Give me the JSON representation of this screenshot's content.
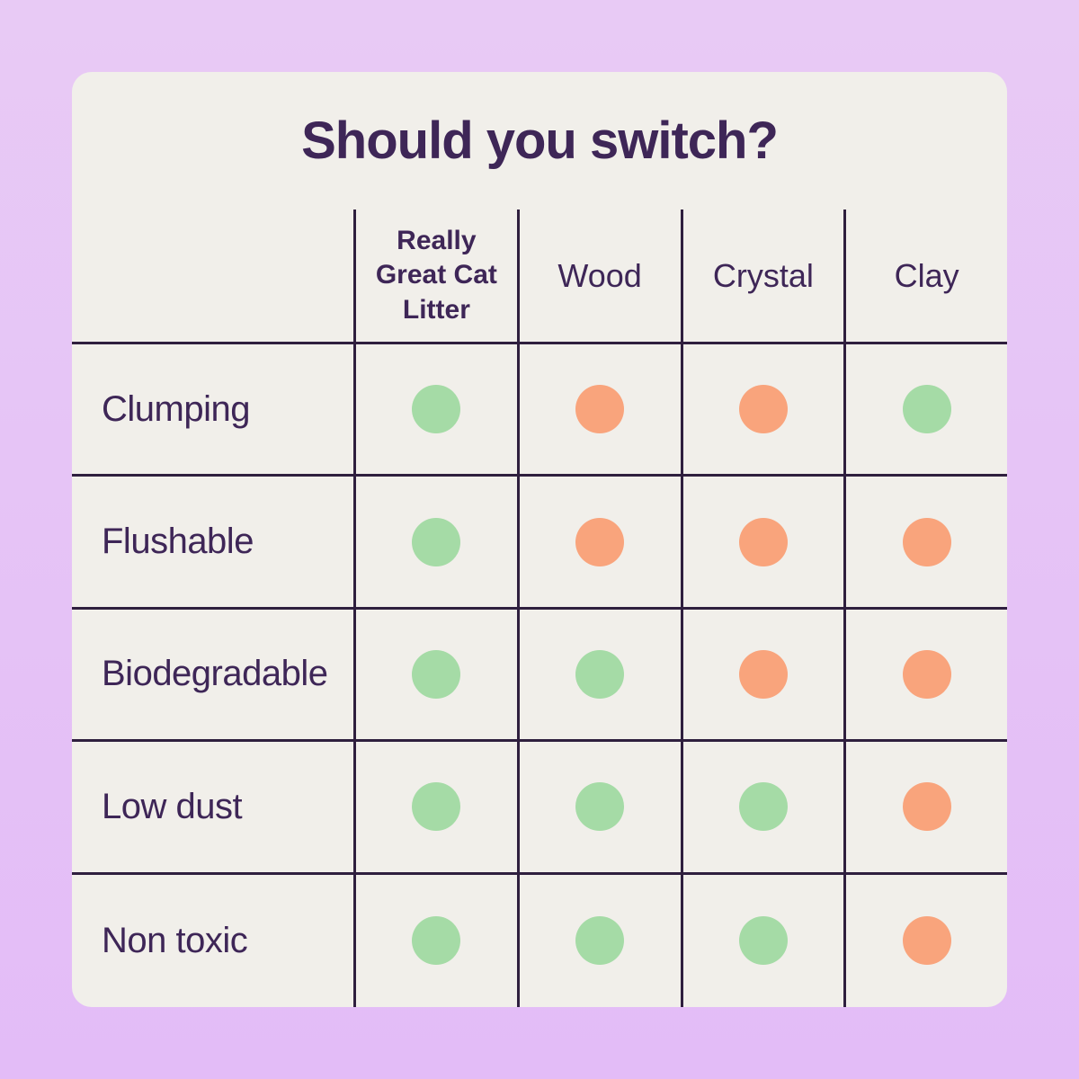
{
  "title": "Should you switch?",
  "table": {
    "columns": [
      "Really Great Cat Litter",
      "Wood",
      "Crystal",
      "Clay"
    ],
    "rows": [
      {
        "label": "Clumping",
        "values": [
          "yes",
          "no",
          "no",
          "yes"
        ]
      },
      {
        "label": "Flushable",
        "values": [
          "yes",
          "no",
          "no",
          "no"
        ]
      },
      {
        "label": "Biodegradable",
        "values": [
          "yes",
          "yes",
          "no",
          "no"
        ]
      },
      {
        "label": "Low dust",
        "values": [
          "yes",
          "yes",
          "yes",
          "no"
        ]
      },
      {
        "label": "Non toxic",
        "values": [
          "yes",
          "yes",
          "yes",
          "no"
        ]
      }
    ],
    "legend": {
      "yes_color": "#a5dba6",
      "no_color": "#f9a47c"
    }
  },
  "colors": {
    "background_top": "#e8caf5",
    "background_bottom": "#e3bcf7",
    "card": "#f1efea",
    "text": "#3e2657",
    "grid_line": "#2f1f3e"
  },
  "chart_data": {
    "type": "table",
    "title": "Should you switch?",
    "columns": [
      "Really Great Cat Litter",
      "Wood",
      "Crystal",
      "Clay"
    ],
    "row_labels": [
      "Clumping",
      "Flushable",
      "Biodegradable",
      "Low dust",
      "Non toxic"
    ],
    "matrix": [
      [
        "yes",
        "no",
        "no",
        "yes"
      ],
      [
        "yes",
        "no",
        "no",
        "no"
      ],
      [
        "yes",
        "yes",
        "no",
        "no"
      ],
      [
        "yes",
        "yes",
        "yes",
        "no"
      ],
      [
        "yes",
        "yes",
        "yes",
        "no"
      ]
    ],
    "encoding": "green dot = yes / has feature, orange dot = no / lacks feature"
  }
}
